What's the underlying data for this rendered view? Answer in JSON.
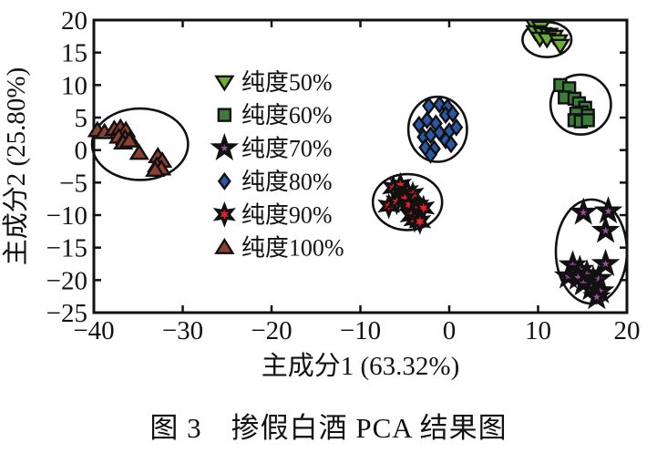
{
  "figure": {
    "caption": "图 3　掺假白酒 PCA 结果图"
  },
  "chart_data": {
    "type": "scatter",
    "title": "",
    "xlabel": "主成分1 (63.32%)",
    "ylabel": "主成分2 (25.80%)",
    "xlim": [
      -40,
      20
    ],
    "ylim": [
      -25,
      20
    ],
    "xticks": [
      -40,
      -30,
      -20,
      -10,
      0,
      10,
      20
    ],
    "yticks": [
      20,
      15,
      10,
      5,
      0,
      -5,
      -10,
      -15,
      -20,
      -25
    ],
    "grid": false,
    "axis_color": "#111111",
    "legend": {
      "position": "inside-middle-left",
      "marker_x": -25.3,
      "text_x": -23.4,
      "row_y": [
        10.5,
        5.4,
        0.3,
        -4.8,
        -9.9,
        -15.0
      ]
    },
    "series": [
      {
        "name": "纯度50%",
        "marker": "triangle-down",
        "color": "#6aae32",
        "points": [
          [
            9.6,
            19.2
          ],
          [
            10.3,
            18.9
          ],
          [
            9.7,
            18.2
          ],
          [
            10.5,
            17.9
          ],
          [
            11.2,
            17.8
          ],
          [
            11.8,
            17.5
          ],
          [
            10.2,
            17.2
          ],
          [
            11.0,
            17.1
          ],
          [
            12.3,
            16.8
          ],
          [
            12.5,
            16.1
          ]
        ],
        "ellipse": {
          "cx": 11.0,
          "cy": 17.0,
          "rx": 2.75,
          "ry": 2.7
        }
      },
      {
        "name": "纯度60%",
        "marker": "square",
        "color": "#3e7c3c",
        "points": [
          [
            12.5,
            10.0
          ],
          [
            13.5,
            9.5
          ],
          [
            13.0,
            8.1
          ],
          [
            14.1,
            7.9
          ],
          [
            14.6,
            7.2
          ],
          [
            15.3,
            6.5
          ],
          [
            14.9,
            5.8
          ],
          [
            14.3,
            5.6
          ],
          [
            15.6,
            5.3
          ],
          [
            14.1,
            4.6
          ],
          [
            14.8,
            4.4
          ],
          [
            15.6,
            4.6
          ]
        ],
        "ellipse": {
          "cx": 14.8,
          "cy": 7.0,
          "rx": 3.4,
          "ry": 4.6
        }
      },
      {
        "name": "纯度70%",
        "marker": "star5",
        "color": "#9a4f9e",
        "points": [
          [
            15.1,
            -9.6
          ],
          [
            17.9,
            -9.4
          ],
          [
            17.6,
            -12.4
          ],
          [
            17.6,
            -17.5
          ],
          [
            13.9,
            -17.7
          ],
          [
            14.7,
            -18.4
          ],
          [
            13.4,
            -19.4
          ],
          [
            14.5,
            -19.6
          ],
          [
            15.5,
            -19.1
          ],
          [
            16.2,
            -20.0
          ],
          [
            16.8,
            -19.8
          ],
          [
            15.1,
            -20.5
          ],
          [
            16.0,
            -21.2
          ],
          [
            17.0,
            -21.7
          ],
          [
            16.6,
            -22.6
          ]
        ],
        "ellipse": {
          "cx": 16.0,
          "cy": -15.6,
          "rx": 4.0,
          "ry": 8.0
        }
      },
      {
        "name": "纯度80%",
        "marker": "diamond",
        "color": "#2a58a6",
        "points": [
          [
            -2.3,
            6.8
          ],
          [
            -1.1,
            7.0
          ],
          [
            -0.2,
            6.6
          ],
          [
            -2.5,
            4.6
          ],
          [
            -3.4,
            3.9
          ],
          [
            -1.5,
            4.1
          ],
          [
            -0.4,
            5.4
          ],
          [
            0.4,
            5.6
          ],
          [
            -2.9,
            2.0
          ],
          [
            -2.1,
            2.3
          ],
          [
            -1.1,
            2.7
          ],
          [
            0.0,
            2.9
          ],
          [
            0.8,
            3.5
          ],
          [
            -2.7,
            0.4
          ],
          [
            -1.7,
            0.2
          ],
          [
            -0.4,
            1.5
          ],
          [
            0.2,
            0.9
          ],
          [
            -2.1,
            -0.7
          ]
        ],
        "ellipse": {
          "cx": -1.3,
          "cy": 3.2,
          "rx": 3.3,
          "ry": 5.0
        }
      },
      {
        "name": "纯度90%",
        "marker": "star6",
        "color": "#e81c2a",
        "points": [
          [
            -6.3,
            -5.8
          ],
          [
            -5.5,
            -5.4
          ],
          [
            -4.7,
            -6.4
          ],
          [
            -4.1,
            -6.8
          ],
          [
            -6.8,
            -8.6
          ],
          [
            -5.9,
            -8.0
          ],
          [
            -5.0,
            -7.5
          ],
          [
            -4.5,
            -8.4
          ],
          [
            -3.5,
            -8.6
          ],
          [
            -2.9,
            -8.9
          ],
          [
            -4.3,
            -10.1
          ],
          [
            -3.9,
            -10.7
          ],
          [
            -3.3,
            -11.0
          ]
        ],
        "ellipse": {
          "cx": -4.7,
          "cy": -8.0,
          "rx": 3.9,
          "ry": 4.3
        }
      },
      {
        "name": "纯度100%",
        "marker": "triangle-up",
        "color": "#8c4034",
        "points": [
          [
            -39.6,
            3.0
          ],
          [
            -38.8,
            2.7
          ],
          [
            -37.7,
            3.2
          ],
          [
            -37.0,
            3.4
          ],
          [
            -36.4,
            3.0
          ],
          [
            -37.2,
            2.0
          ],
          [
            -36.5,
            1.8
          ],
          [
            -35.9,
            1.6
          ],
          [
            -36.7,
            1.1
          ],
          [
            -36.0,
            1.4
          ],
          [
            -34.9,
            -0.5
          ],
          [
            -32.8,
            -1.0
          ],
          [
            -32.3,
            -1.7
          ],
          [
            -32.9,
            -2.4
          ],
          [
            -32.4,
            -2.9
          ],
          [
            -33.1,
            -3.1
          ]
        ],
        "ellipse": {
          "cx": -34.8,
          "cy": 0.9,
          "rx": 5.4,
          "ry": 5.5
        }
      }
    ]
  }
}
